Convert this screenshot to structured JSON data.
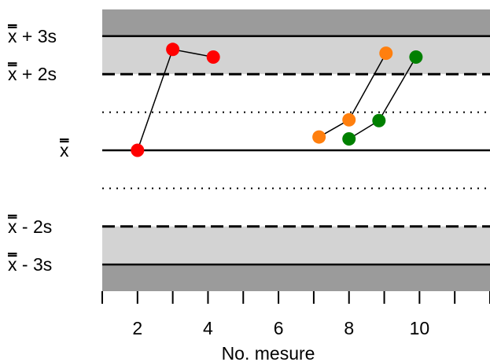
{
  "chart_data": {
    "type": "scatter",
    "title": "",
    "xlabel": "No. mesure",
    "ylabel": "",
    "xlim": [
      1,
      12
    ],
    "ylim": [
      -3.7,
      3.7
    ],
    "x_ticks": [
      1,
      2,
      3,
      4,
      5,
      6,
      7,
      8,
      9,
      10,
      11,
      12
    ],
    "x_tick_labels": [
      {
        "x": 2,
        "label": "2"
      },
      {
        "x": 4,
        "label": "4"
      },
      {
        "x": 6,
        "label": "6"
      },
      {
        "x": 8,
        "label": "8"
      },
      {
        "x": 10,
        "label": "10"
      }
    ],
    "y_reference_labels": [
      {
        "y": 3,
        "text": "+ 3s"
      },
      {
        "y": 2,
        "text": "+ 2s"
      },
      {
        "y": 0,
        "text": ""
      },
      {
        "y": -2,
        "text": "- 2s"
      },
      {
        "y": -3,
        "text": "- 3s"
      }
    ],
    "y_symbol": "x",
    "reference_lines": [
      {
        "y": 3,
        "style": "solid"
      },
      {
        "y": 2,
        "style": "dashed"
      },
      {
        "y": 1,
        "style": "dotted"
      },
      {
        "y": 0,
        "style": "solid"
      },
      {
        "y": -1,
        "style": "dotted"
      },
      {
        "y": -2,
        "style": "dashed"
      },
      {
        "y": -3,
        "style": "solid"
      }
    ],
    "bands": [
      {
        "from": 3,
        "to": 3.7,
        "color": "#9b9b9b"
      },
      {
        "from": 2,
        "to": 3,
        "color": "#d3d3d3"
      },
      {
        "from": -2,
        "to": 2,
        "color": "#ffffff"
      },
      {
        "from": -3,
        "to": -2,
        "color": "#d3d3d3"
      },
      {
        "from": -3.7,
        "to": -3,
        "color": "#9b9b9b"
      }
    ],
    "series": [
      {
        "color": "#ff0000",
        "points": [
          {
            "x": 2,
            "y": 0
          },
          {
            "x": 3,
            "y": 2.65
          },
          {
            "x": 4.15,
            "y": 2.45
          }
        ]
      },
      {
        "color": "#ff7f0e",
        "points": [
          {
            "x": 7.15,
            "y": 0.35
          },
          {
            "x": 8,
            "y": 0.8
          },
          {
            "x": 9.05,
            "y": 2.55
          }
        ]
      },
      {
        "color": "#008000",
        "points": [
          {
            "x": 8,
            "y": 0.3
          },
          {
            "x": 8.85,
            "y": 0.78
          },
          {
            "x": 9.9,
            "y": 2.45
          }
        ]
      }
    ]
  }
}
